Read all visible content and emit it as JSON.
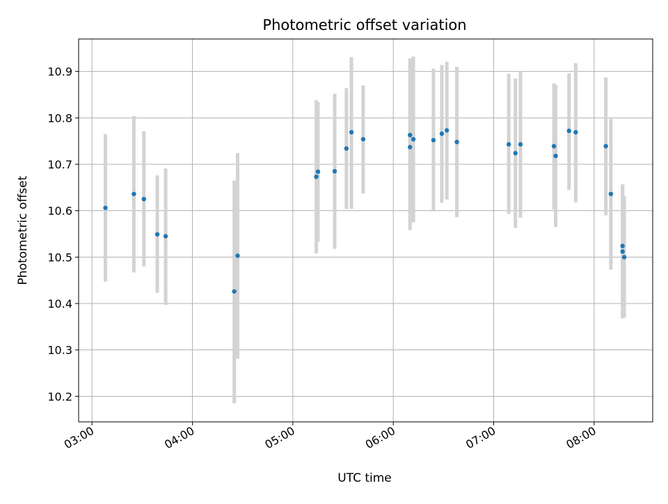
{
  "chart_data": {
    "type": "scatter",
    "title": "Photometric offset variation",
    "xlabel": "UTC time",
    "ylabel": "Photometric offset",
    "xlim": [
      "02:52",
      "08:35"
    ],
    "ylim": [
      10.145,
      10.97
    ],
    "x_ticks": [
      "03:00",
      "04:00",
      "05:00",
      "06:00",
      "07:00",
      "08:00"
    ],
    "y_ticks": [
      "10.2",
      "10.3",
      "10.4",
      "10.5",
      "10.6",
      "10.7",
      "10.8",
      "10.9"
    ],
    "grid": true,
    "point_color": "#1f77b4",
    "errorbar_color": "#d3d3d3",
    "points": [
      {
        "x": "03:08",
        "y": 10.606,
        "err_low": 10.447,
        "err_high": 10.765
      },
      {
        "x": "03:25",
        "y": 10.636,
        "err_low": 10.467,
        "err_high": 10.804
      },
      {
        "x": "03:31",
        "y": 10.625,
        "err_low": 10.48,
        "err_high": 10.771
      },
      {
        "x": "03:39",
        "y": 10.549,
        "err_low": 10.423,
        "err_high": 10.676
      },
      {
        "x": "03:44",
        "y": 10.545,
        "err_low": 10.397,
        "err_high": 10.691
      },
      {
        "x": "04:25",
        "y": 10.426,
        "err_low": 10.185,
        "err_high": 10.665
      },
      {
        "x": "04:27",
        "y": 10.503,
        "err_low": 10.281,
        "err_high": 10.724
      },
      {
        "x": "05:14",
        "y": 10.673,
        "err_low": 10.508,
        "err_high": 10.838
      },
      {
        "x": "05:15",
        "y": 10.684,
        "err_low": 10.533,
        "err_high": 10.834
      },
      {
        "x": "05:25",
        "y": 10.685,
        "err_low": 10.518,
        "err_high": 10.852
      },
      {
        "x": "05:32",
        "y": 10.734,
        "err_low": 10.604,
        "err_high": 10.864
      },
      {
        "x": "05:35",
        "y": 10.769,
        "err_low": 10.604,
        "err_high": 10.931
      },
      {
        "x": "05:42",
        "y": 10.754,
        "err_low": 10.637,
        "err_high": 10.87
      },
      {
        "x": "06:10",
        "y": 10.737,
        "err_low": 10.558,
        "err_high": 10.912
      },
      {
        "x": "06:10",
        "y": 10.763,
        "err_low": 10.592,
        "err_high": 10.928
      },
      {
        "x": "06:12",
        "y": 10.754,
        "err_low": 10.575,
        "err_high": 10.932
      },
      {
        "x": "06:24",
        "y": 10.752,
        "err_low": 10.601,
        "err_high": 10.906
      },
      {
        "x": "06:29",
        "y": 10.766,
        "err_low": 10.617,
        "err_high": 10.914
      },
      {
        "x": "06:32",
        "y": 10.773,
        "err_low": 10.624,
        "err_high": 10.921
      },
      {
        "x": "06:38",
        "y": 10.748,
        "err_low": 10.586,
        "err_high": 10.91
      },
      {
        "x": "07:09",
        "y": 10.743,
        "err_low": 10.593,
        "err_high": 10.895
      },
      {
        "x": "07:13",
        "y": 10.724,
        "err_low": 10.563,
        "err_high": 10.885
      },
      {
        "x": "07:16",
        "y": 10.743,
        "err_low": 10.585,
        "err_high": 10.899
      },
      {
        "x": "07:36",
        "y": 10.739,
        "err_low": 10.603,
        "err_high": 10.874
      },
      {
        "x": "07:37",
        "y": 10.718,
        "err_low": 10.565,
        "err_high": 10.871
      },
      {
        "x": "07:45",
        "y": 10.772,
        "err_low": 10.645,
        "err_high": 10.896
      },
      {
        "x": "07:49",
        "y": 10.769,
        "err_low": 10.618,
        "err_high": 10.918
      },
      {
        "x": "08:07",
        "y": 10.739,
        "err_low": 10.59,
        "err_high": 10.887
      },
      {
        "x": "08:10",
        "y": 10.636,
        "err_low": 10.473,
        "err_high": 10.798
      },
      {
        "x": "08:17",
        "y": 10.512,
        "err_low": 10.368,
        "err_high": 10.657
      },
      {
        "x": "08:17",
        "y": 10.524,
        "err_low": 10.394,
        "err_high": 10.654
      },
      {
        "x": "08:18",
        "y": 10.5,
        "err_low": 10.37,
        "err_high": 10.631
      }
    ]
  }
}
